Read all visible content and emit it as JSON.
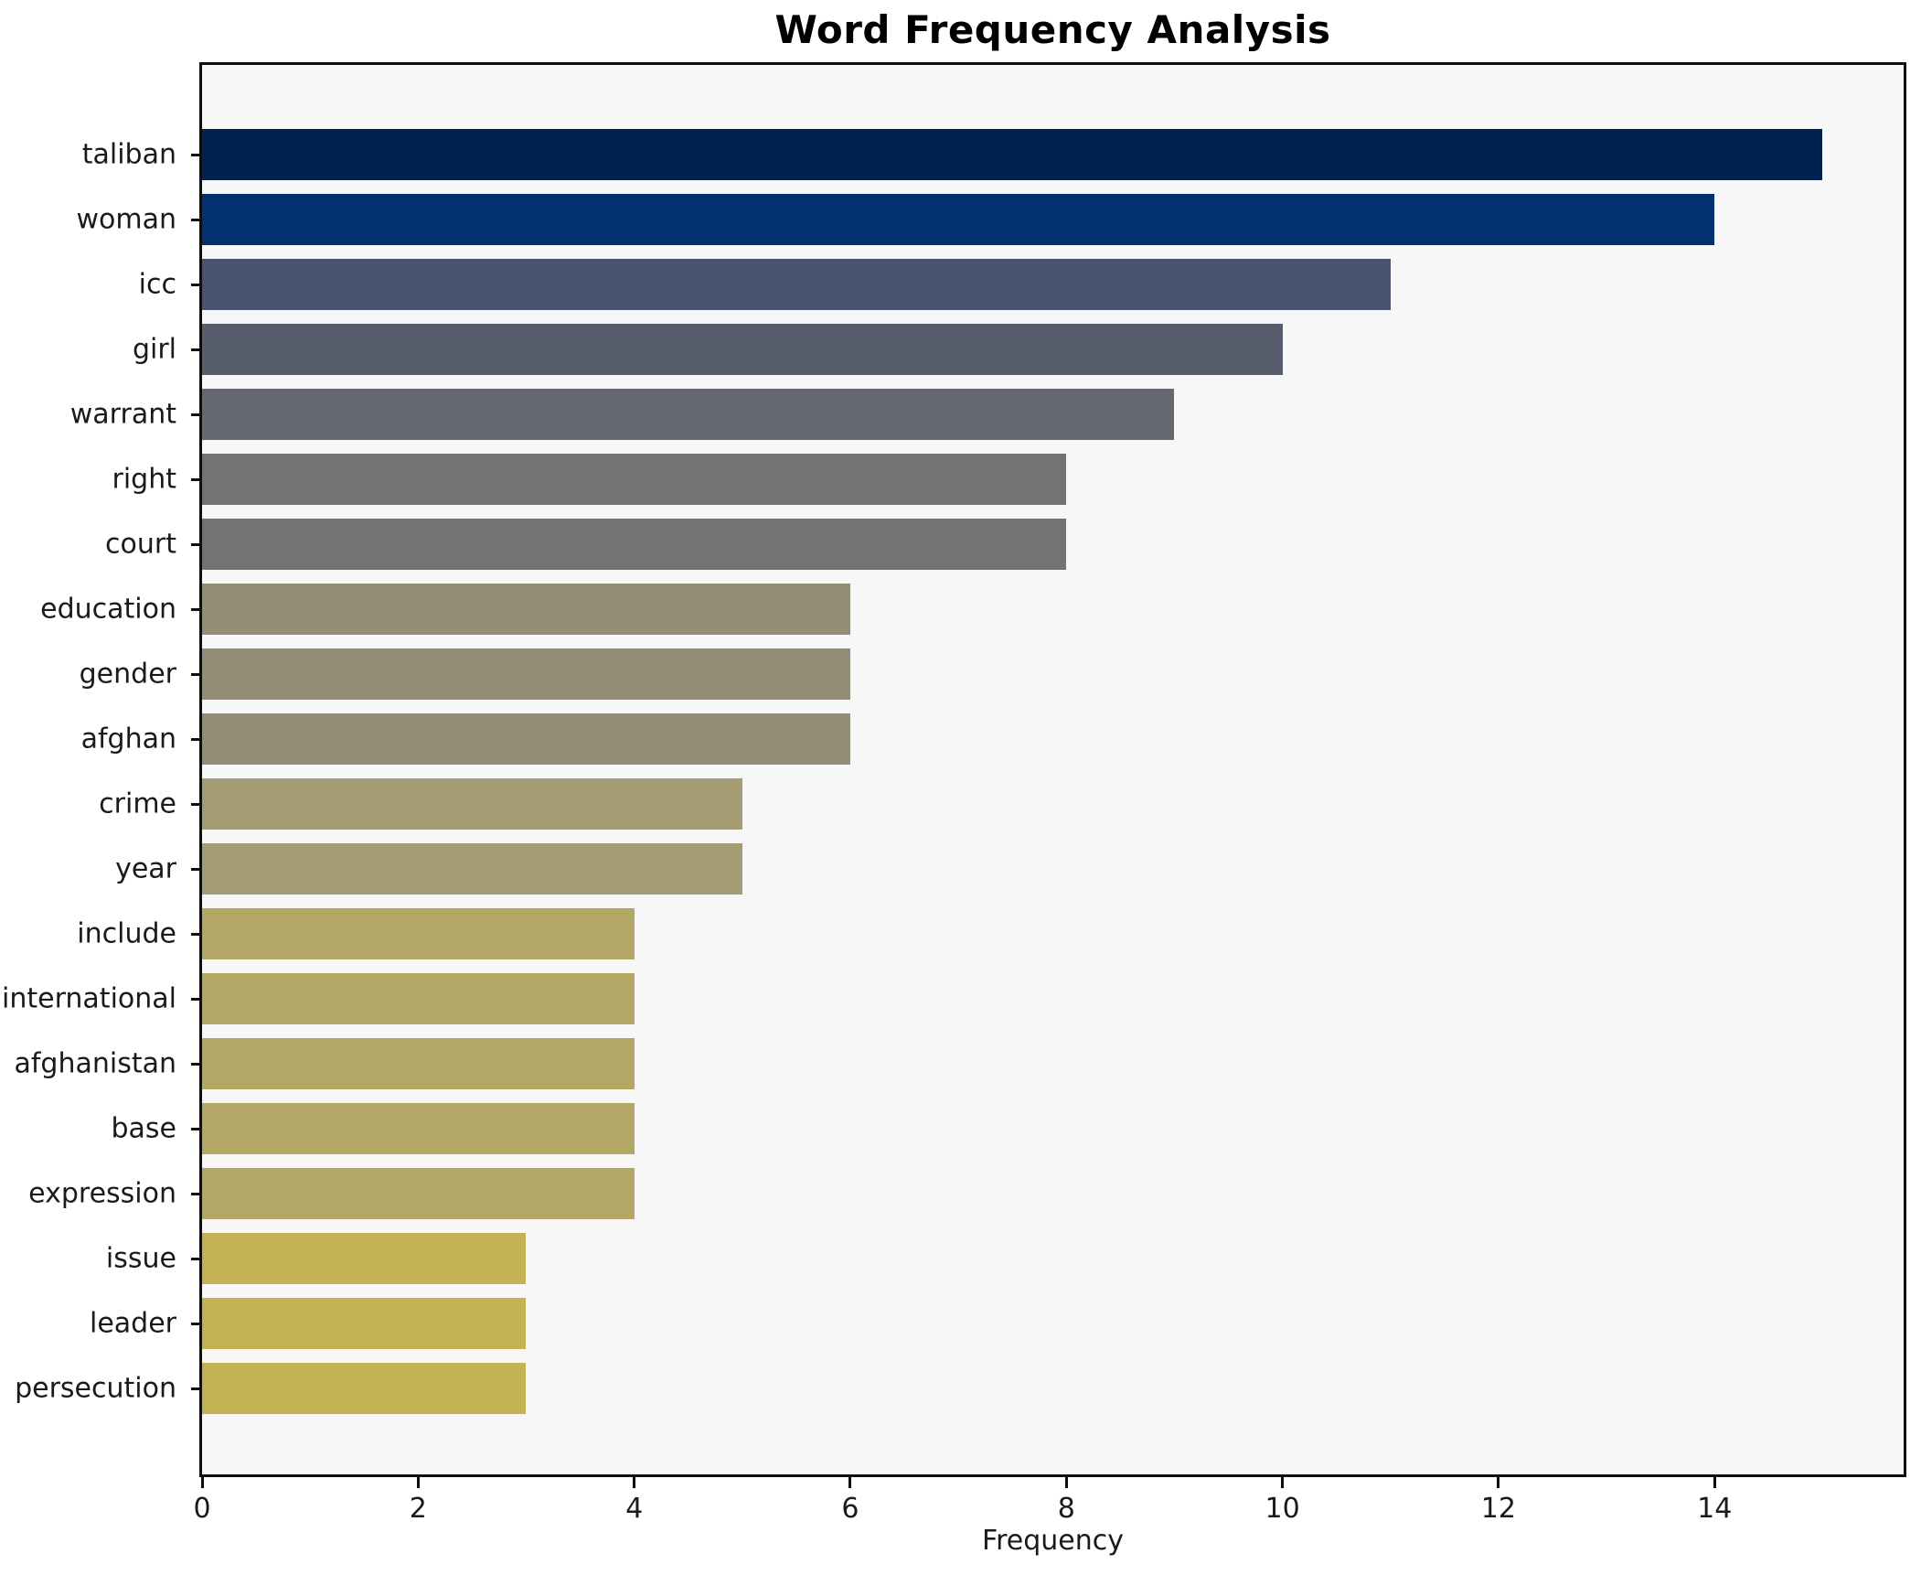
{
  "title": "Word Frequency Analysis",
  "chart_data": {
    "type": "bar",
    "orientation": "horizontal",
    "title": "Word Frequency Analysis",
    "xlabel": "Frequency",
    "ylabel": "",
    "categories": [
      "taliban",
      "woman",
      "icc",
      "girl",
      "warrant",
      "right",
      "court",
      "education",
      "gender",
      "afghan",
      "crime",
      "year",
      "include",
      "international",
      "afghanistan",
      "base",
      "expression",
      "issue",
      "leader",
      "persecution"
    ],
    "values": [
      15,
      14,
      11,
      10,
      9,
      8,
      8,
      6,
      6,
      6,
      5,
      5,
      4,
      4,
      4,
      4,
      4,
      3,
      3,
      3
    ],
    "bar_colors": [
      "#00224e",
      "#01316f",
      "#4a5370",
      "#575d6d",
      "#65696f",
      "#737373",
      "#737373",
      "#948e78",
      "#948e78",
      "#948e78",
      "#a49d74",
      "#a49d74",
      "#b3a766",
      "#b3a766",
      "#b3a766",
      "#b3a766",
      "#b3a766",
      "#c3b355",
      "#c3b355",
      "#c3b355"
    ],
    "xlim": [
      0,
      15.75
    ],
    "xticks": [
      0,
      2,
      4,
      6,
      8,
      10,
      12,
      14
    ],
    "grid": false,
    "legend": null,
    "colormap": "cividis",
    "plot_background": "#f7f7f8",
    "figure_background": "#ffffff",
    "spine_color": "#0e0e0e",
    "text_color": "#1a1a1a"
  }
}
